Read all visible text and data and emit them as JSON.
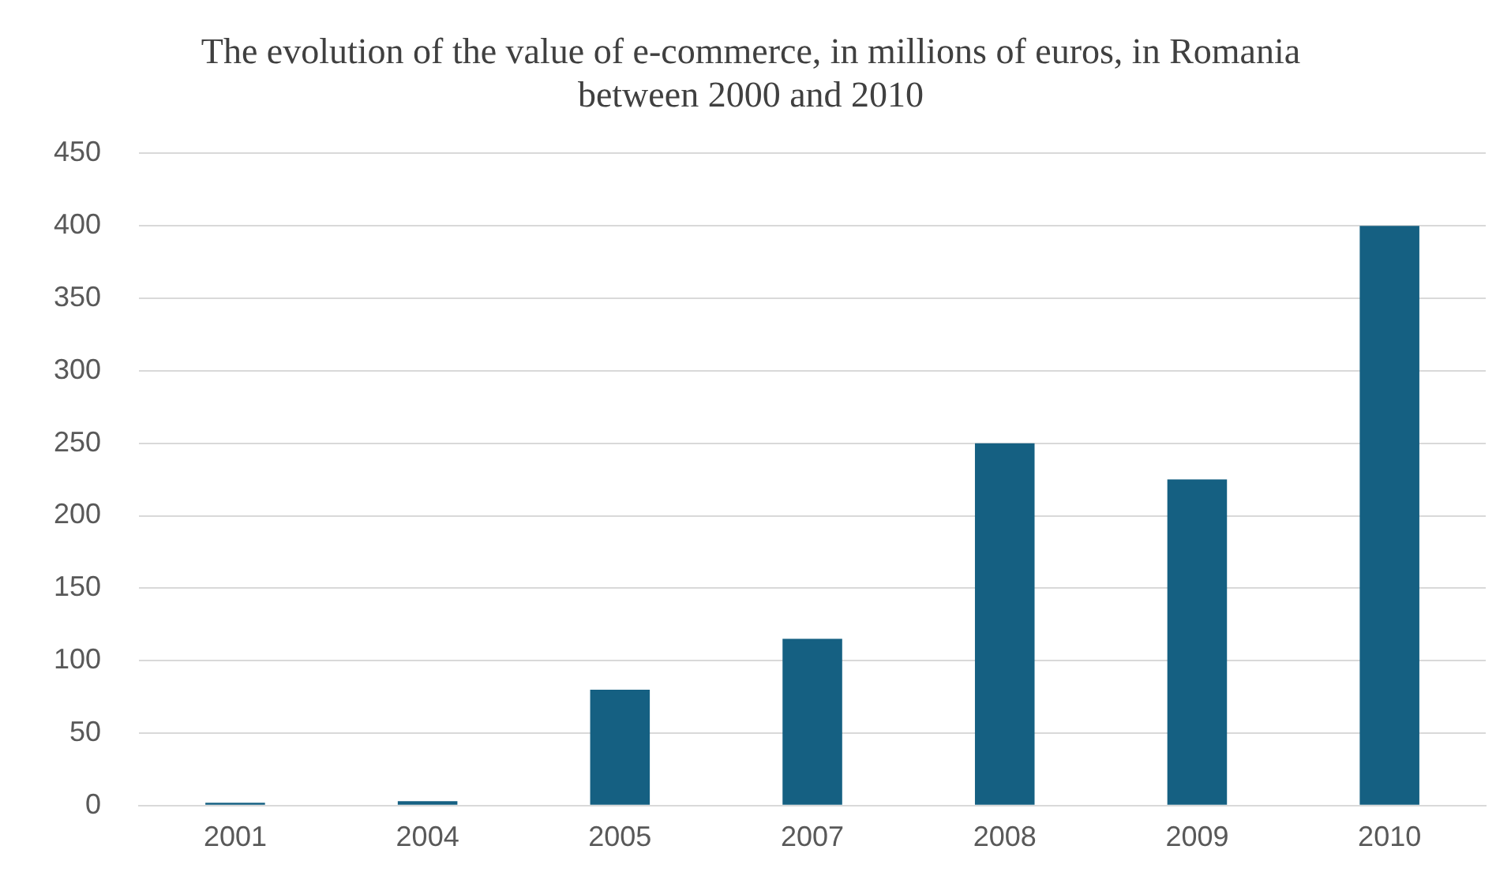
{
  "chart_data": {
    "type": "bar",
    "title": "The evolution of the value of e-commerce, in millions of euros, in Romania between 2000 and 2010",
    "categories": [
      "2001",
      "2004",
      "2005",
      "2007",
      "2008",
      "2009",
      "2010"
    ],
    "values": [
      2,
      3,
      80,
      115,
      250,
      225,
      400
    ],
    "color": "#156082",
    "ylim": [
      0,
      450
    ],
    "yticks": [
      0,
      50,
      100,
      150,
      200,
      250,
      300,
      350,
      400,
      450
    ],
    "grid": "y"
  }
}
